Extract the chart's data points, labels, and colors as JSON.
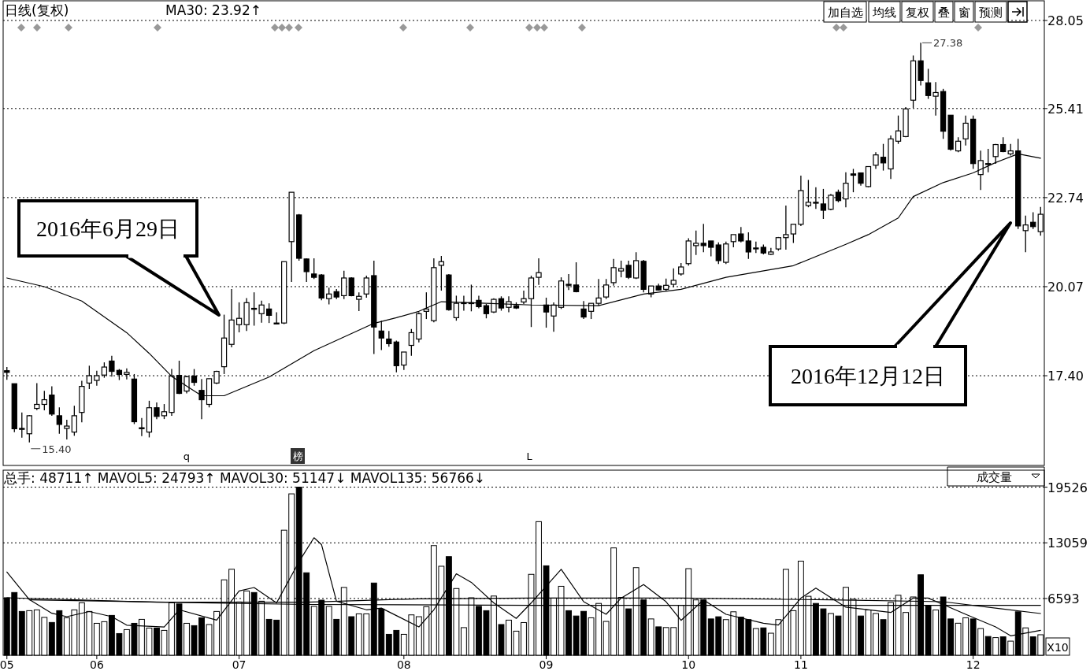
{
  "chart_data": [
    {
      "type": "candlestick",
      "title": "日线(复权)",
      "subtitle": "MA30: 23.92↑",
      "categories": [
        null,
        null,
        null,
        null,
        null,
        null,
        null,
        null,
        null,
        null,
        null,
        null,
        null,
        null,
        null,
        null,
        null,
        null,
        null,
        null,
        null,
        null,
        null,
        null,
        null,
        null,
        null,
        null,
        null,
        null,
        null,
        null,
        null,
        null,
        null,
        null,
        null,
        null,
        null,
        null,
        null,
        null,
        null,
        null,
        null,
        null,
        null,
        null,
        null,
        null,
        null,
        null,
        null,
        null,
        null,
        null,
        null,
        null,
        null,
        null,
        null,
        null,
        null,
        null,
        null,
        null,
        null,
        null,
        null,
        null,
        null,
        null,
        null,
        null,
        null,
        null,
        null,
        null,
        null,
        null,
        null,
        null,
        null,
        null,
        null,
        null,
        null,
        null,
        null,
        null,
        null,
        null,
        null,
        null,
        null,
        null,
        null,
        null,
        null,
        null,
        null,
        null,
        null,
        null,
        null,
        null,
        null,
        null,
        null,
        null,
        null,
        null,
        null,
        null,
        null,
        null,
        null,
        null,
        null,
        null,
        null,
        null,
        null,
        null,
        null,
        null,
        null,
        null,
        null,
        null,
        null,
        null,
        null,
        null,
        null,
        null,
        null,
        null,
        null
      ],
      "ohlc": [
        [
          17.55,
          17.66,
          17.28,
          17.5
        ],
        [
          17.16,
          17.16,
          15.71,
          15.81
        ],
        [
          15.82,
          16.3,
          15.54,
          15.82
        ],
        [
          15.66,
          16.22,
          15.4,
          16.2
        ],
        [
          16.42,
          17.18,
          16.37,
          16.54
        ],
        [
          16.54,
          16.95,
          16.36,
          16.68
        ],
        [
          16.82,
          17.08,
          16.2,
          16.25
        ],
        [
          16.2,
          16.45,
          15.66,
          15.94
        ],
        [
          15.82,
          16.08,
          15.49,
          15.89
        ],
        [
          15.71,
          16.5,
          15.6,
          16.2
        ],
        [
          16.3,
          17.25,
          16.0,
          17.08
        ],
        [
          17.18,
          17.7,
          17.0,
          17.4
        ],
        [
          17.26,
          17.55,
          17.1,
          17.4
        ],
        [
          17.42,
          17.8,
          17.34,
          17.66
        ],
        [
          17.84,
          18.0,
          17.37,
          17.53
        ],
        [
          17.56,
          17.6,
          17.27,
          17.44
        ],
        [
          17.44,
          17.62,
          17.29,
          17.5
        ],
        [
          17.3,
          17.45,
          15.95,
          16.02
        ],
        [
          15.82,
          16.13,
          15.59,
          15.84
        ],
        [
          15.71,
          16.65,
          15.55,
          16.44
        ],
        [
          16.44,
          16.6,
          16.1,
          16.18
        ],
        [
          16.2,
          16.55,
          16.1,
          16.32
        ],
        [
          16.3,
          17.6,
          16.2,
          17.39
        ],
        [
          17.41,
          17.85,
          16.85,
          16.87
        ],
        [
          16.94,
          17.4,
          16.87,
          17.37
        ],
        [
          17.39,
          17.6,
          17.1,
          17.2
        ],
        [
          16.96,
          17.3,
          16.1,
          16.68
        ],
        [
          16.54,
          17.31,
          16.45,
          17.31
        ],
        [
          17.18,
          17.55,
          17.15,
          17.53
        ],
        [
          17.67,
          19.23,
          17.45,
          18.53
        ],
        [
          18.34,
          20.0,
          18.25,
          19.07
        ],
        [
          18.93,
          19.6,
          18.7,
          19.12
        ],
        [
          18.93,
          19.73,
          18.74,
          19.59
        ],
        [
          19.4,
          19.9,
          18.9,
          19.42
        ],
        [
          19.26,
          19.65,
          18.99,
          19.52
        ],
        [
          19.4,
          19.57,
          18.98,
          19.21
        ],
        [
          18.98,
          19.3,
          18.95,
          18.98
        ],
        [
          18.98,
          20.82,
          18.95,
          20.82
        ],
        [
          21.42,
          22.9,
          20.21,
          22.9
        ],
        [
          22.22,
          22.25,
          20.85,
          20.92
        ],
        [
          20.9,
          20.92,
          20.21,
          20.52
        ],
        [
          20.45,
          20.92,
          20.3,
          20.35
        ],
        [
          20.42,
          20.45,
          19.66,
          19.73
        ],
        [
          19.71,
          20.04,
          19.54,
          19.85
        ],
        [
          19.92,
          20.0,
          19.7,
          19.76
        ],
        [
          19.8,
          20.55,
          19.7,
          20.33
        ],
        [
          20.33,
          20.35,
          19.78,
          19.8
        ],
        [
          19.69,
          19.9,
          19.34,
          19.78
        ],
        [
          19.85,
          20.4,
          19.74,
          20.33
        ],
        [
          20.4,
          20.85,
          18.05,
          18.86
        ],
        [
          18.74,
          19.05,
          18.17,
          18.53
        ],
        [
          18.5,
          18.74,
          18.27,
          18.36
        ],
        [
          18.41,
          18.45,
          17.5,
          17.7
        ],
        [
          17.72,
          18.11,
          17.57,
          18.11
        ],
        [
          18.31,
          18.8,
          18.0,
          18.69
        ],
        [
          18.5,
          19.3,
          18.4,
          19.26
        ],
        [
          19.33,
          19.9,
          19.1,
          19.4
        ],
        [
          19.05,
          20.92,
          19.0,
          20.64
        ],
        [
          20.71,
          20.99,
          19.95,
          20.82
        ],
        [
          20.42,
          20.45,
          19.35,
          19.38
        ],
        [
          19.14,
          19.8,
          19.05,
          19.57
        ],
        [
          19.57,
          19.8,
          19.35,
          19.59
        ],
        [
          19.57,
          20.13,
          19.33,
          19.59
        ],
        [
          19.66,
          19.8,
          19.42,
          19.47
        ],
        [
          19.5,
          19.55,
          19.12,
          19.26
        ],
        [
          19.31,
          19.72,
          19.28,
          19.69
        ],
        [
          19.71,
          19.78,
          19.35,
          19.43
        ],
        [
          19.45,
          19.78,
          19.3,
          19.62
        ],
        [
          19.5,
          19.6,
          19.4,
          19.43
        ],
        [
          19.61,
          19.95,
          19.55,
          19.71
        ],
        [
          19.71,
          20.4,
          18.86,
          20.33
        ],
        [
          20.35,
          20.92,
          20.12,
          20.49
        ],
        [
          19.52,
          19.74,
          18.84,
          19.31
        ],
        [
          19.19,
          19.6,
          18.72,
          19.52
        ],
        [
          19.45,
          20.35,
          19.4,
          20.24
        ],
        [
          20.14,
          20.45,
          19.97,
          20.12
        ],
        [
          20.12,
          20.8,
          19.9,
          19.92
        ],
        [
          19.4,
          19.64,
          19.1,
          19.16
        ],
        [
          19.33,
          19.57,
          19.1,
          19.57
        ],
        [
          19.57,
          20.3,
          19.5,
          19.73
        ],
        [
          19.76,
          20.3,
          19.7,
          20.12
        ],
        [
          20.19,
          20.9,
          20.1,
          20.64
        ],
        [
          20.54,
          20.85,
          20.35,
          20.61
        ],
        [
          20.71,
          20.85,
          20.3,
          20.35
        ],
        [
          20.33,
          21.1,
          20.3,
          20.85
        ],
        [
          20.83,
          20.87,
          19.9,
          19.99
        ],
        [
          19.85,
          20.09,
          19.75,
          20.09
        ],
        [
          20.09,
          20.16,
          19.95,
          19.97
        ],
        [
          19.99,
          20.31,
          19.95,
          20.11
        ],
        [
          20.14,
          20.62,
          20.05,
          20.26
        ],
        [
          20.45,
          20.78,
          20.4,
          20.66
        ],
        [
          20.76,
          21.52,
          20.7,
          21.44
        ],
        [
          21.3,
          21.75,
          21.02,
          21.37
        ],
        [
          21.37,
          21.95,
          21.1,
          21.3
        ],
        [
          21.44,
          21.44,
          20.98,
          21.25
        ],
        [
          21.32,
          21.4,
          20.75,
          20.85
        ],
        [
          20.8,
          21.42,
          20.75,
          21.35
        ],
        [
          21.42,
          21.63,
          21.25,
          21.63
        ],
        [
          21.65,
          21.86,
          21.4,
          21.44
        ],
        [
          21.44,
          21.7,
          20.9,
          21.11
        ],
        [
          21.23,
          21.42,
          21.08,
          21.23
        ],
        [
          21.25,
          21.33,
          21.04,
          21.08
        ],
        [
          21.04,
          21.23,
          21.02,
          21.11
        ],
        [
          21.2,
          21.56,
          21.15,
          21.54
        ],
        [
          21.54,
          22.5,
          21.18,
          21.63
        ],
        [
          21.65,
          21.94,
          21.38,
          21.94
        ],
        [
          21.94,
          23.4,
          21.89,
          22.95
        ],
        [
          22.5,
          23.27,
          22.45,
          22.6
        ],
        [
          22.6,
          23.05,
          22.4,
          22.6
        ],
        [
          22.55,
          23.0,
          22.1,
          22.36
        ],
        [
          22.39,
          22.85,
          22.36,
          22.81
        ],
        [
          22.9,
          22.98,
          22.6,
          22.65
        ],
        [
          22.7,
          23.5,
          22.45,
          23.17
        ],
        [
          23.45,
          23.6,
          22.9,
          23.41
        ],
        [
          23.48,
          23.48,
          23.1,
          23.17
        ],
        [
          23.07,
          23.67,
          23.05,
          23.67
        ],
        [
          23.71,
          24.1,
          23.6,
          24.02
        ],
        [
          23.95,
          24.35,
          23.55,
          23.78
        ],
        [
          23.6,
          24.6,
          23.3,
          24.5
        ],
        [
          24.43,
          25.2,
          24.35,
          24.74
        ],
        [
          24.57,
          25.45,
          24.55,
          25.4
        ],
        [
          25.66,
          27.0,
          25.43,
          26.84
        ],
        [
          26.84,
          27.38,
          26.1,
          26.25
        ],
        [
          26.18,
          26.6,
          25.7,
          25.8
        ],
        [
          25.78,
          26.2,
          25.2,
          25.89
        ],
        [
          25.92,
          26.0,
          24.5,
          24.73
        ],
        [
          25.21,
          25.21,
          24.15,
          24.19
        ],
        [
          24.14,
          24.55,
          24.1,
          24.43
        ],
        [
          24.5,
          25.2,
          24.3,
          24.97
        ],
        [
          25.09,
          25.2,
          23.6,
          23.76
        ],
        [
          23.43,
          24.15,
          22.97,
          23.85
        ],
        [
          23.76,
          24.2,
          23.5,
          23.76
        ],
        [
          23.97,
          24.35,
          23.75,
          24.33
        ],
        [
          24.33,
          24.55,
          24.1,
          24.12
        ],
        [
          24.05,
          24.35,
          24.0,
          24.14
        ],
        [
          24.14,
          24.5,
          21.8,
          21.89
        ],
        [
          21.75,
          22.2,
          21.1,
          21.92
        ],
        [
          22.0,
          22.3,
          21.8,
          21.87
        ],
        [
          21.72,
          22.46,
          21.6,
          22.24
        ]
      ],
      "series": [
        {
          "type": "line",
          "color": "#000000",
          "values": [
            20.33,
            null,
            null,
            null,
            null,
            20.07,
            null,
            null,
            null,
            null,
            19.64,
            null,
            null,
            null,
            null,
            null,
            18.69,
            null,
            null,
            18.07,
            null,
            null,
            17.38,
            null,
            null,
            null,
            16.8,
            null,
            null,
            16.8,
            null,
            null,
            null,
            null,
            null,
            17.36,
            null,
            null,
            null,
            null,
            null,
            18.15,
            null,
            null,
            null,
            null,
            null,
            null,
            null,
            18.97,
            null,
            null,
            19.14,
            null,
            null,
            19.33,
            null,
            null,
            19.62,
            null,
            null,
            null,
            null,
            null,
            19.57,
            null,
            null,
            null,
            null,
            null,
            19.52,
            null,
            null,
            null,
            null,
            null,
            null,
            null,
            null,
            19.5,
            null,
            null,
            null,
            null,
            null,
            19.85,
            null,
            null,
            null,
            null,
            19.99,
            null,
            null,
            null,
            null,
            null,
            20.35,
            null,
            null,
            null,
            null,
            null,
            null,
            null,
            null,
            20.7,
            null,
            null,
            null,
            null,
            null,
            null,
            21.34,
            null,
            null,
            21.63,
            null,
            null,
            null,
            22.13,
            null,
            22.77,
            null,
            null,
            null,
            23.19,
            null,
            null,
            null,
            23.48,
            null,
            null,
            23.79,
            null,
            null,
            24.05,
            null,
            null,
            23.92
          ]
        }
      ],
      "ylim": [
        14.71,
        28.64
      ],
      "yticks": [
        {
          "value": 17.4,
          "label": "17.40"
        },
        20.07,
        22.74,
        25.41,
        28.05
      ],
      "grid": "y",
      "tick_labels": "y",
      "annotations": [
        "2016年6月29日",
        "2016年12月12日",
        "27.38",
        "15.40",
        "q",
        "榜",
        "L",
        "加自选",
        "均线",
        "复权",
        "叠",
        "窗",
        "预测"
      ]
    },
    {
      "type": "bar",
      "categories": [
        "05",
        null,
        null,
        null,
        null,
        null,
        null,
        null,
        null,
        null,
        null,
        null,
        "06",
        null,
        null,
        null,
        null,
        null,
        null,
        null,
        null,
        null,
        null,
        null,
        null,
        null,
        null,
        null,
        null,
        null,
        null,
        "07",
        null,
        null,
        null,
        null,
        null,
        null,
        null,
        null,
        null,
        null,
        null,
        null,
        null,
        null,
        null,
        null,
        null,
        null,
        null,
        null,
        null,
        "08",
        null,
        null,
        null,
        null,
        null,
        null,
        null,
        null,
        null,
        null,
        null,
        null,
        null,
        null,
        null,
        null,
        null,
        null,
        "09",
        null,
        null,
        null,
        null,
        null,
        null,
        null,
        null,
        null,
        null,
        null,
        null,
        null,
        null,
        null,
        null,
        null,
        null,
        "10",
        null,
        null,
        null,
        null,
        null,
        null,
        null,
        null,
        null,
        null,
        null,
        null,
        null,
        null,
        "11",
        null,
        null,
        null,
        null,
        null,
        null,
        null,
        null,
        null,
        null,
        null,
        null,
        null,
        null,
        null,
        null,
        null,
        null,
        null,
        null,
        null,
        null,
        "12",
        null,
        null,
        null,
        null,
        null,
        null,
        null,
        null,
        null
      ],
      "series": [
        {
          "type": "bar",
          "values": [
            6680,
            7290,
            5090,
            5180,
            5270,
            4400,
            3810,
            5180,
            4360,
            5270,
            6100,
            5090,
            3710,
            3900,
            4630,
            2520,
            2980,
            3710,
            4170,
            3160,
            3160,
            2890,
            6100,
            5960,
            3710,
            3440,
            4360,
            3570,
            5090,
            8760,
            9990,
            6190,
            7470,
            7290,
            6280,
            4170,
            4080,
            14530,
            18750,
            19526,
            9580,
            5680,
            6400,
            5680,
            4170,
            7880,
            4480,
            4810,
            4810,
            8390,
            5360,
            2430,
            2890,
            2430,
            4690,
            4480,
            5640,
            12740,
            10340,
            11460,
            7750,
            3210,
            6680,
            5680,
            5180,
            6880,
            3570,
            4080,
            2800,
            3800,
            9400,
            15520,
            10390,
            6640,
            8010,
            5180,
            4560,
            5100,
            4350,
            6020,
            3930,
            12470,
            6720,
            5390,
            10180,
            6430,
            4220,
            3300,
            3220,
            3220,
            5800,
            10060,
            6430,
            6430,
            4220,
            4470,
            4140,
            5050,
            4430,
            4140,
            3100,
            3180,
            2560,
            4140,
            9980,
            5180,
            10930,
            6850,
            6020,
            5390,
            4850,
            4560,
            7890,
            6510,
            4560,
            5260,
            4850,
            4140,
            6130,
            6970,
            4970,
            6770,
            9350,
            5720,
            5260,
            6770,
            4220,
            3720,
            4350,
            4220,
            3100,
            2180,
            2050,
            2140,
            1640,
            5050,
            3180,
            2140,
            2380
          ],
          "colors": [
            "#000000",
            "#000000",
            "#000000",
            "#ffffff",
            "#ffffff",
            "#ffffff",
            "#000000",
            "#000000",
            "#ffffff",
            "#ffffff",
            "#ffffff",
            "#ffffff",
            "#ffffff",
            "#ffffff",
            "#000000",
            "#000000",
            "#ffffff",
            "#000000",
            "#ffffff",
            "#ffffff",
            "#000000",
            "#ffffff",
            "#ffffff",
            "#000000",
            "#ffffff",
            "#000000",
            "#000000",
            "#ffffff",
            "#ffffff",
            "#ffffff",
            "#ffffff",
            "#ffffff",
            "#ffffff",
            "#000000",
            "#ffffff",
            "#000000",
            "#000000",
            "#ffffff",
            "#ffffff",
            "#000000",
            "#000000",
            "#ffffff",
            "#000000",
            "#ffffff",
            "#000000",
            "#ffffff",
            "#000000",
            "#ffffff",
            "#ffffff",
            "#000000",
            "#000000",
            "#000000",
            "#000000",
            "#ffffff",
            "#ffffff",
            "#ffffff",
            "#ffffff",
            "#ffffff",
            "#ffffff",
            "#000000",
            "#ffffff",
            "#ffffff",
            "#ffffff",
            "#000000",
            "#000000",
            "#ffffff",
            "#000000",
            "#ffffff",
            "#ffffff",
            "#ffffff",
            "#ffffff",
            "#ffffff",
            "#000000",
            "#ffffff",
            "#ffffff",
            "#000000",
            "#000000",
            "#000000",
            "#ffffff",
            "#ffffff",
            "#ffffff",
            "#ffffff",
            "#ffffff",
            "#000000",
            "#ffffff",
            "#000000",
            "#ffffff",
            "#000000",
            "#ffffff",
            "#ffffff",
            "#ffffff",
            "#ffffff",
            "#ffffff",
            "#000000",
            "#000000",
            "#000000",
            "#ffffff",
            "#ffffff",
            "#000000",
            "#000000",
            "#ffffff",
            "#000000",
            "#ffffff",
            "#ffffff",
            "#ffffff",
            "#ffffff",
            "#ffffff",
            "#ffffff",
            "#000000",
            "#000000",
            "#ffffff",
            "#000000",
            "#ffffff",
            "#ffffff",
            "#000000",
            "#ffffff",
            "#ffffff",
            "#000000",
            "#ffffff",
            "#ffffff",
            "#ffffff",
            "#ffffff",
            "#000000",
            "#000000",
            "#ffffff",
            "#000000",
            "#000000",
            "#ffffff",
            "#ffffff",
            "#000000",
            "#ffffff",
            "#000000",
            "#ffffff",
            "#000000",
            "#ffffff",
            "#000000",
            "#ffffff",
            "#000000",
            "#ffffff"
          ]
        },
        {
          "type": "line",
          "color": "#000000",
          "values": [
            9670,
            null,
            null,
            6470,
            null,
            null,
            4880,
            null,
            4480,
            null,
            null,
            5080,
            null,
            null,
            4480,
            null,
            3490,
            null,
            null,
            null,
            null,
            3290,
            null,
            5280,
            null,
            null,
            null,
            null,
            4080,
            null,
            null,
            7470,
            null,
            7870,
            null,
            null,
            6080,
            null,
            null,
            10870,
            null,
            13650,
            12860,
            null,
            6280,
            null,
            null,
            null,
            5280,
            null,
            5480,
            null,
            null,
            null,
            null,
            3290,
            null,
            5280,
            null,
            null,
            9460,
            null,
            8470,
            null,
            null,
            6080,
            null,
            null,
            4280,
            null,
            6080,
            null,
            null,
            null,
            9980,
            null,
            null,
            6220,
            null,
            null,
            4760,
            null,
            6640,
            null,
            null,
            8220,
            null,
            null,
            6220,
            null,
            4050,
            null,
            null,
            6430,
            null,
            null,
            4760,
            null,
            null,
            null,
            null,
            3720,
            null,
            3510,
            null,
            null,
            6640,
            null,
            7800,
            null,
            null,
            null,
            5590,
            null,
            null,
            null,
            null,
            null,
            4970,
            null,
            null,
            6640,
            null,
            6640,
            null,
            null,
            null,
            null,
            4760,
            null,
            null,
            null,
            3300,
            null,
            2260,
            null,
            null,
            null,
            2890
          ]
        },
        {
          "type": "line",
          "color": "#000000",
          "values": [
            6680,
            null,
            null,
            null,
            null,
            null,
            null,
            null,
            null,
            null,
            null,
            null,
            null,
            null,
            null,
            null,
            null,
            null,
            null,
            null,
            6160,
            null,
            null,
            null,
            null,
            null,
            null,
            null,
            null,
            null,
            null,
            null,
            null,
            null,
            null,
            null,
            null,
            null,
            null,
            null,
            6160,
            null,
            null,
            null,
            null,
            null,
            null,
            null,
            null,
            null,
            null,
            null,
            null,
            null,
            null,
            6560,
            null,
            null,
            null,
            null,
            null,
            null,
            null,
            null,
            null,
            null,
            null,
            null,
            null,
            null,
            6640,
            null,
            null,
            null,
            null,
            null,
            null,
            null,
            null,
            null,
            null,
            null,
            null,
            null,
            null,
            null,
            null,
            null,
            null,
            null,
            6640,
            null,
            null,
            null,
            null,
            null,
            null,
            null,
            null,
            null,
            null,
            null,
            null,
            null,
            null,
            null,
            null,
            null,
            null,
            null,
            6430,
            null,
            null,
            null,
            null,
            null,
            null,
            null,
            null,
            null,
            null,
            null,
            null,
            null,
            null,
            6220,
            null,
            null,
            null,
            null,
            null,
            null,
            null,
            null,
            null,
            null,
            null,
            null,
            4850
          ]
        },
        {
          "type": "line",
          "color": "#000000",
          "values": [
            null,
            null,
            null,
            6430,
            null,
            null,
            null,
            null,
            null,
            null,
            null,
            null,
            null,
            null,
            null,
            null,
            null,
            null,
            null,
            null,
            null,
            null,
            null,
            null,
            null,
            null,
            null,
            null,
            null,
            null,
            null,
            null,
            null,
            null,
            null,
            null,
            null,
            null,
            null,
            null,
            5900,
            null,
            null,
            null,
            null,
            null,
            null,
            null,
            null,
            null,
            null,
            null,
            null,
            null,
            null,
            null,
            null,
            null,
            null,
            null,
            null,
            null,
            null,
            null,
            null,
            null,
            null,
            null,
            null,
            null,
            5800,
            null,
            null,
            null,
            null,
            null,
            null,
            null,
            null,
            null,
            null,
            null,
            null,
            null,
            null,
            null,
            null,
            null,
            null,
            null,
            null,
            null,
            null,
            null,
            null,
            null,
            null,
            null,
            null,
            null,
            5800,
            null,
            null,
            null,
            null,
            null,
            null,
            null,
            null,
            null,
            null,
            null,
            null,
            null,
            null,
            null,
            null,
            null,
            null,
            null,
            null,
            null,
            null,
            null,
            null,
            null,
            null,
            null,
            null,
            null,
            null,
            null,
            null,
            null,
            null,
            null,
            null,
            null,
            5800
          ]
        }
      ],
      "ylim": [
        0,
        21500
      ],
      "yticks": [
        6593,
        13059,
        19526
      ],
      "grid": "y",
      "annotations": [
        "总手: 48711↑  MAVOL5: 24793↑  MAVOL30: 51147↓  MAVOL135: 56766↓",
        "成交量",
        "X10"
      ]
    }
  ]
}
